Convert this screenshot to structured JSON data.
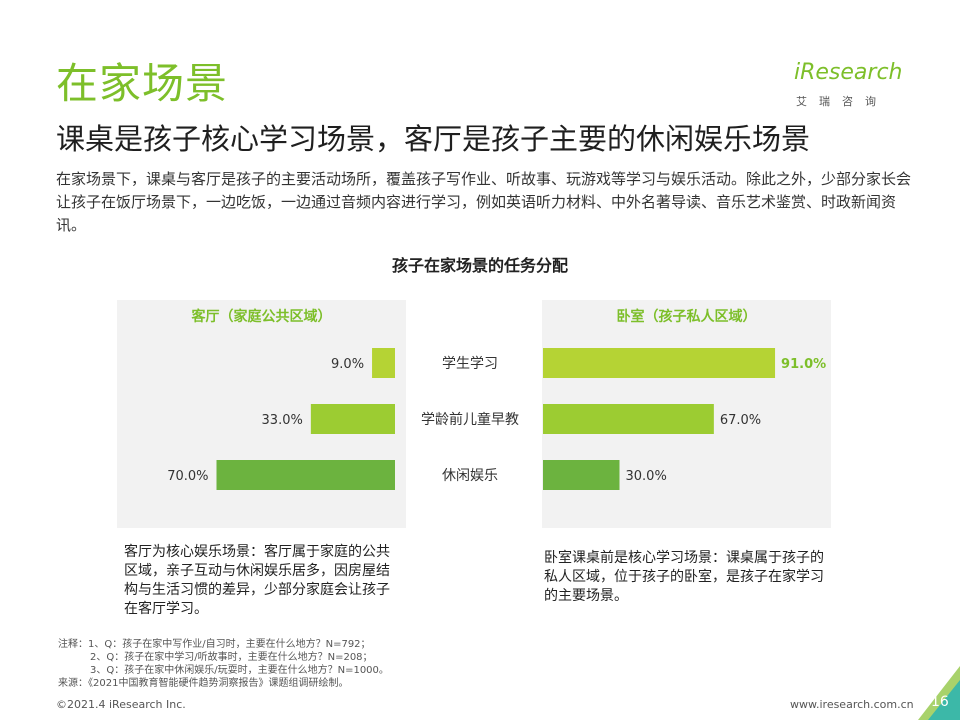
{
  "header": {
    "section_title": "在家场景",
    "headline": "课桌是孩子核心学习场景，客厅是孩子主要的休闲娱乐场景",
    "intro": "在家场景下，课桌与客厅是孩子的主要活动场所，覆盖孩子写作业、听故事、玩游戏等学习与娱乐活动。除此之外，少部分家长会让孩子在饭厅场景下，一边吃饭，一边通过音频内容进行学习，例如英语听力材料、中外名著导读、音乐艺术鉴赏、时政新闻资讯。"
  },
  "logo": {
    "wordmark": "iResearch",
    "cn": "艾瑞咨询"
  },
  "chart_data": {
    "type": "bar",
    "title": "孩子在家场景的任务分配",
    "categories": [
      "学生学习",
      "学龄前儿童早教",
      "休闲娱乐"
    ],
    "series": [
      {
        "name": "客厅（家庭公共区域）",
        "values": [
          9.0,
          33.0,
          70.0
        ],
        "colors": [
          "#b5d334",
          "#9ccc32",
          "#6cb33f"
        ]
      },
      {
        "name": "卧室（孩子私人区域）",
        "values": [
          91.0,
          67.0,
          30.0
        ],
        "colors": [
          "#b5d334",
          "#9ccc32",
          "#6cb33f"
        ]
      }
    ],
    "value_suffix": "%",
    "xlim": [
      0,
      100
    ],
    "grid": false,
    "accent": "#7dbf2a"
  },
  "notes": {
    "left": "客厅为核心娱乐场景：客厅属于家庭的公共区域，亲子互动与休闲娱乐居多，因房屋结构与生活习惯的差异，少部分家庭会让孩子在客厅学习。",
    "right": "卧室课桌前是核心学习场景：课桌属于孩子的私人区域，位于孩子的卧室，是孩子在家学习的主要场景。"
  },
  "footnotes": {
    "line1": "注释：1、Q：孩子在家中写作业/自习时，主要在什么地方？N=792；",
    "line2": "2、Q：孩子在家中学习/听故事时，主要在什么地方？N=208；",
    "line3": "3、Q：孩子在家中休闲娱乐/玩耍时，主要在什么地方？N=1000。",
    "source": "来源：《2021中国教育智能硬件趋势洞察报告》课题组调研绘制。"
  },
  "footer": {
    "copyright": "©2021.4 iResearch Inc.",
    "website": "www.iresearch.com.cn",
    "page_number": "16"
  }
}
